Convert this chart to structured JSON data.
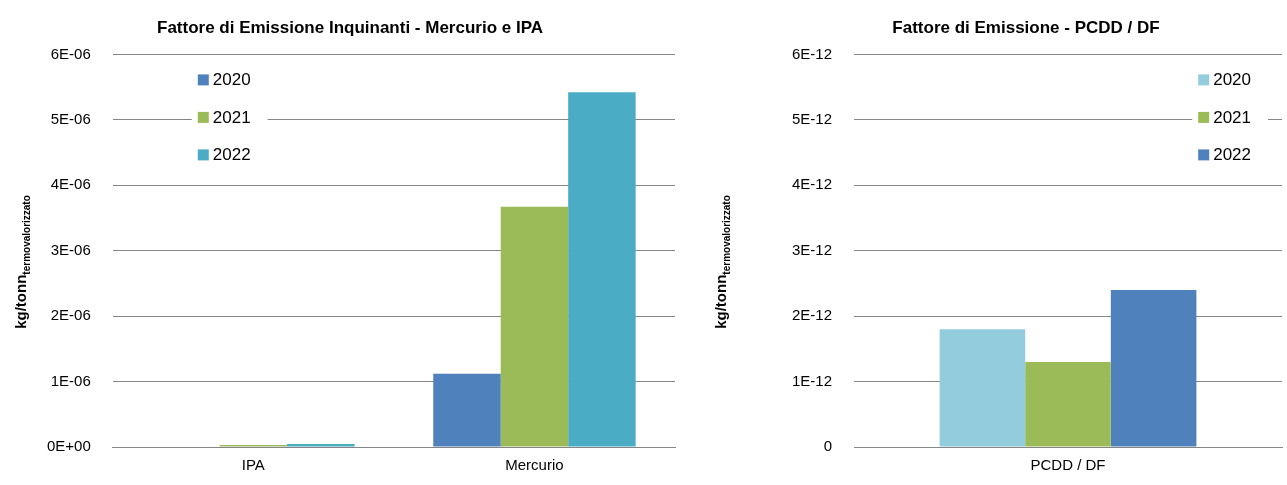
{
  "chart_data": [
    {
      "type": "bar",
      "title": "Fattore di Emissione Inquinanti - Mercurio e IPA",
      "ylabel": "kg/tonn$_{termovalorizzato}$",
      "categories": [
        "IPA",
        "Mercurio"
      ],
      "series": [
        {
          "name": "2020",
          "color": "#4f81bd",
          "values": [
            0,
            1.12e-06
          ]
        },
        {
          "name": "2021",
          "color": "#9bbb59",
          "values": [
            3e-08,
            3.67e-06
          ]
        },
        {
          "name": "2022",
          "color": "#4bacc6",
          "values": [
            4.5e-08,
            5.42e-06
          ]
        }
      ],
      "ylim": [
        0,
        6e-06
      ],
      "yticks": [
        {
          "value": 0,
          "label": "0E+00"
        },
        {
          "value": 1e-06,
          "label": "1E-06"
        },
        {
          "value": 2e-06,
          "label": "2E-06"
        },
        {
          "value": 3e-06,
          "label": "3E-06"
        },
        {
          "value": 4e-06,
          "label": "4E-06"
        },
        {
          "value": 5e-06,
          "label": "5E-06"
        },
        {
          "value": 6e-06,
          "label": "6E-06"
        }
      ],
      "grid": "y",
      "legend": "top left"
    },
    {
      "type": "bar",
      "title": "Fattore di Emissione - PCDD / DF",
      "ylabel": "kg/tonn$_{termovalorizzato}$",
      "categories": [
        "PCDD / DF"
      ],
      "series": [
        {
          "name": "2020",
          "color": "#93cddd",
          "values": [
            1.8e-12
          ]
        },
        {
          "name": "2021",
          "color": "#9bbb59",
          "values": [
            1.3e-12
          ]
        },
        {
          "name": "2022",
          "color": "#4f81bd",
          "values": [
            2.4e-12
          ]
        }
      ],
      "ylim": [
        0,
        6e-12
      ],
      "yticks": [
        0,
        {
          "value": 1e-12,
          "label": "1E-12"
        },
        {
          "value": 2e-12,
          "label": "2E-12"
        },
        {
          "value": 3e-12,
          "label": "3E-12"
        },
        {
          "value": 4e-12,
          "label": "4E-12"
        },
        {
          "value": 5e-12,
          "label": "5E-12"
        },
        {
          "value": 6e-12,
          "label": "6E-12"
        }
      ],
      "grid": "y",
      "legend": "top right"
    }
  ]
}
